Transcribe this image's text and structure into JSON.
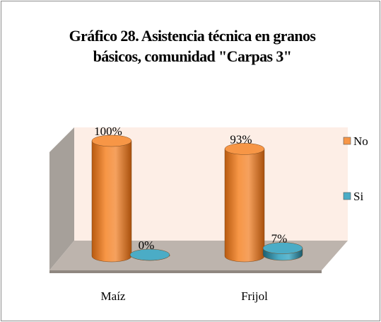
{
  "chart_data": {
    "type": "bar3d",
    "title": "Gráfico 28. Asistencia técnica en granos básicos, comunidad \"Carpas 3\"",
    "categories": [
      "Maíz",
      "Frijol"
    ],
    "series": [
      {
        "name": "No",
        "color": "#f79646",
        "values": [
          100,
          93
        ],
        "value_labels": [
          "100%",
          "93%"
        ]
      },
      {
        "name": "Si",
        "color": "#4bacc6",
        "values": [
          0,
          7
        ],
        "value_labels": [
          "0%",
          "7%"
        ]
      }
    ],
    "ylim": [
      0,
      100
    ],
    "legend": "right"
  }
}
